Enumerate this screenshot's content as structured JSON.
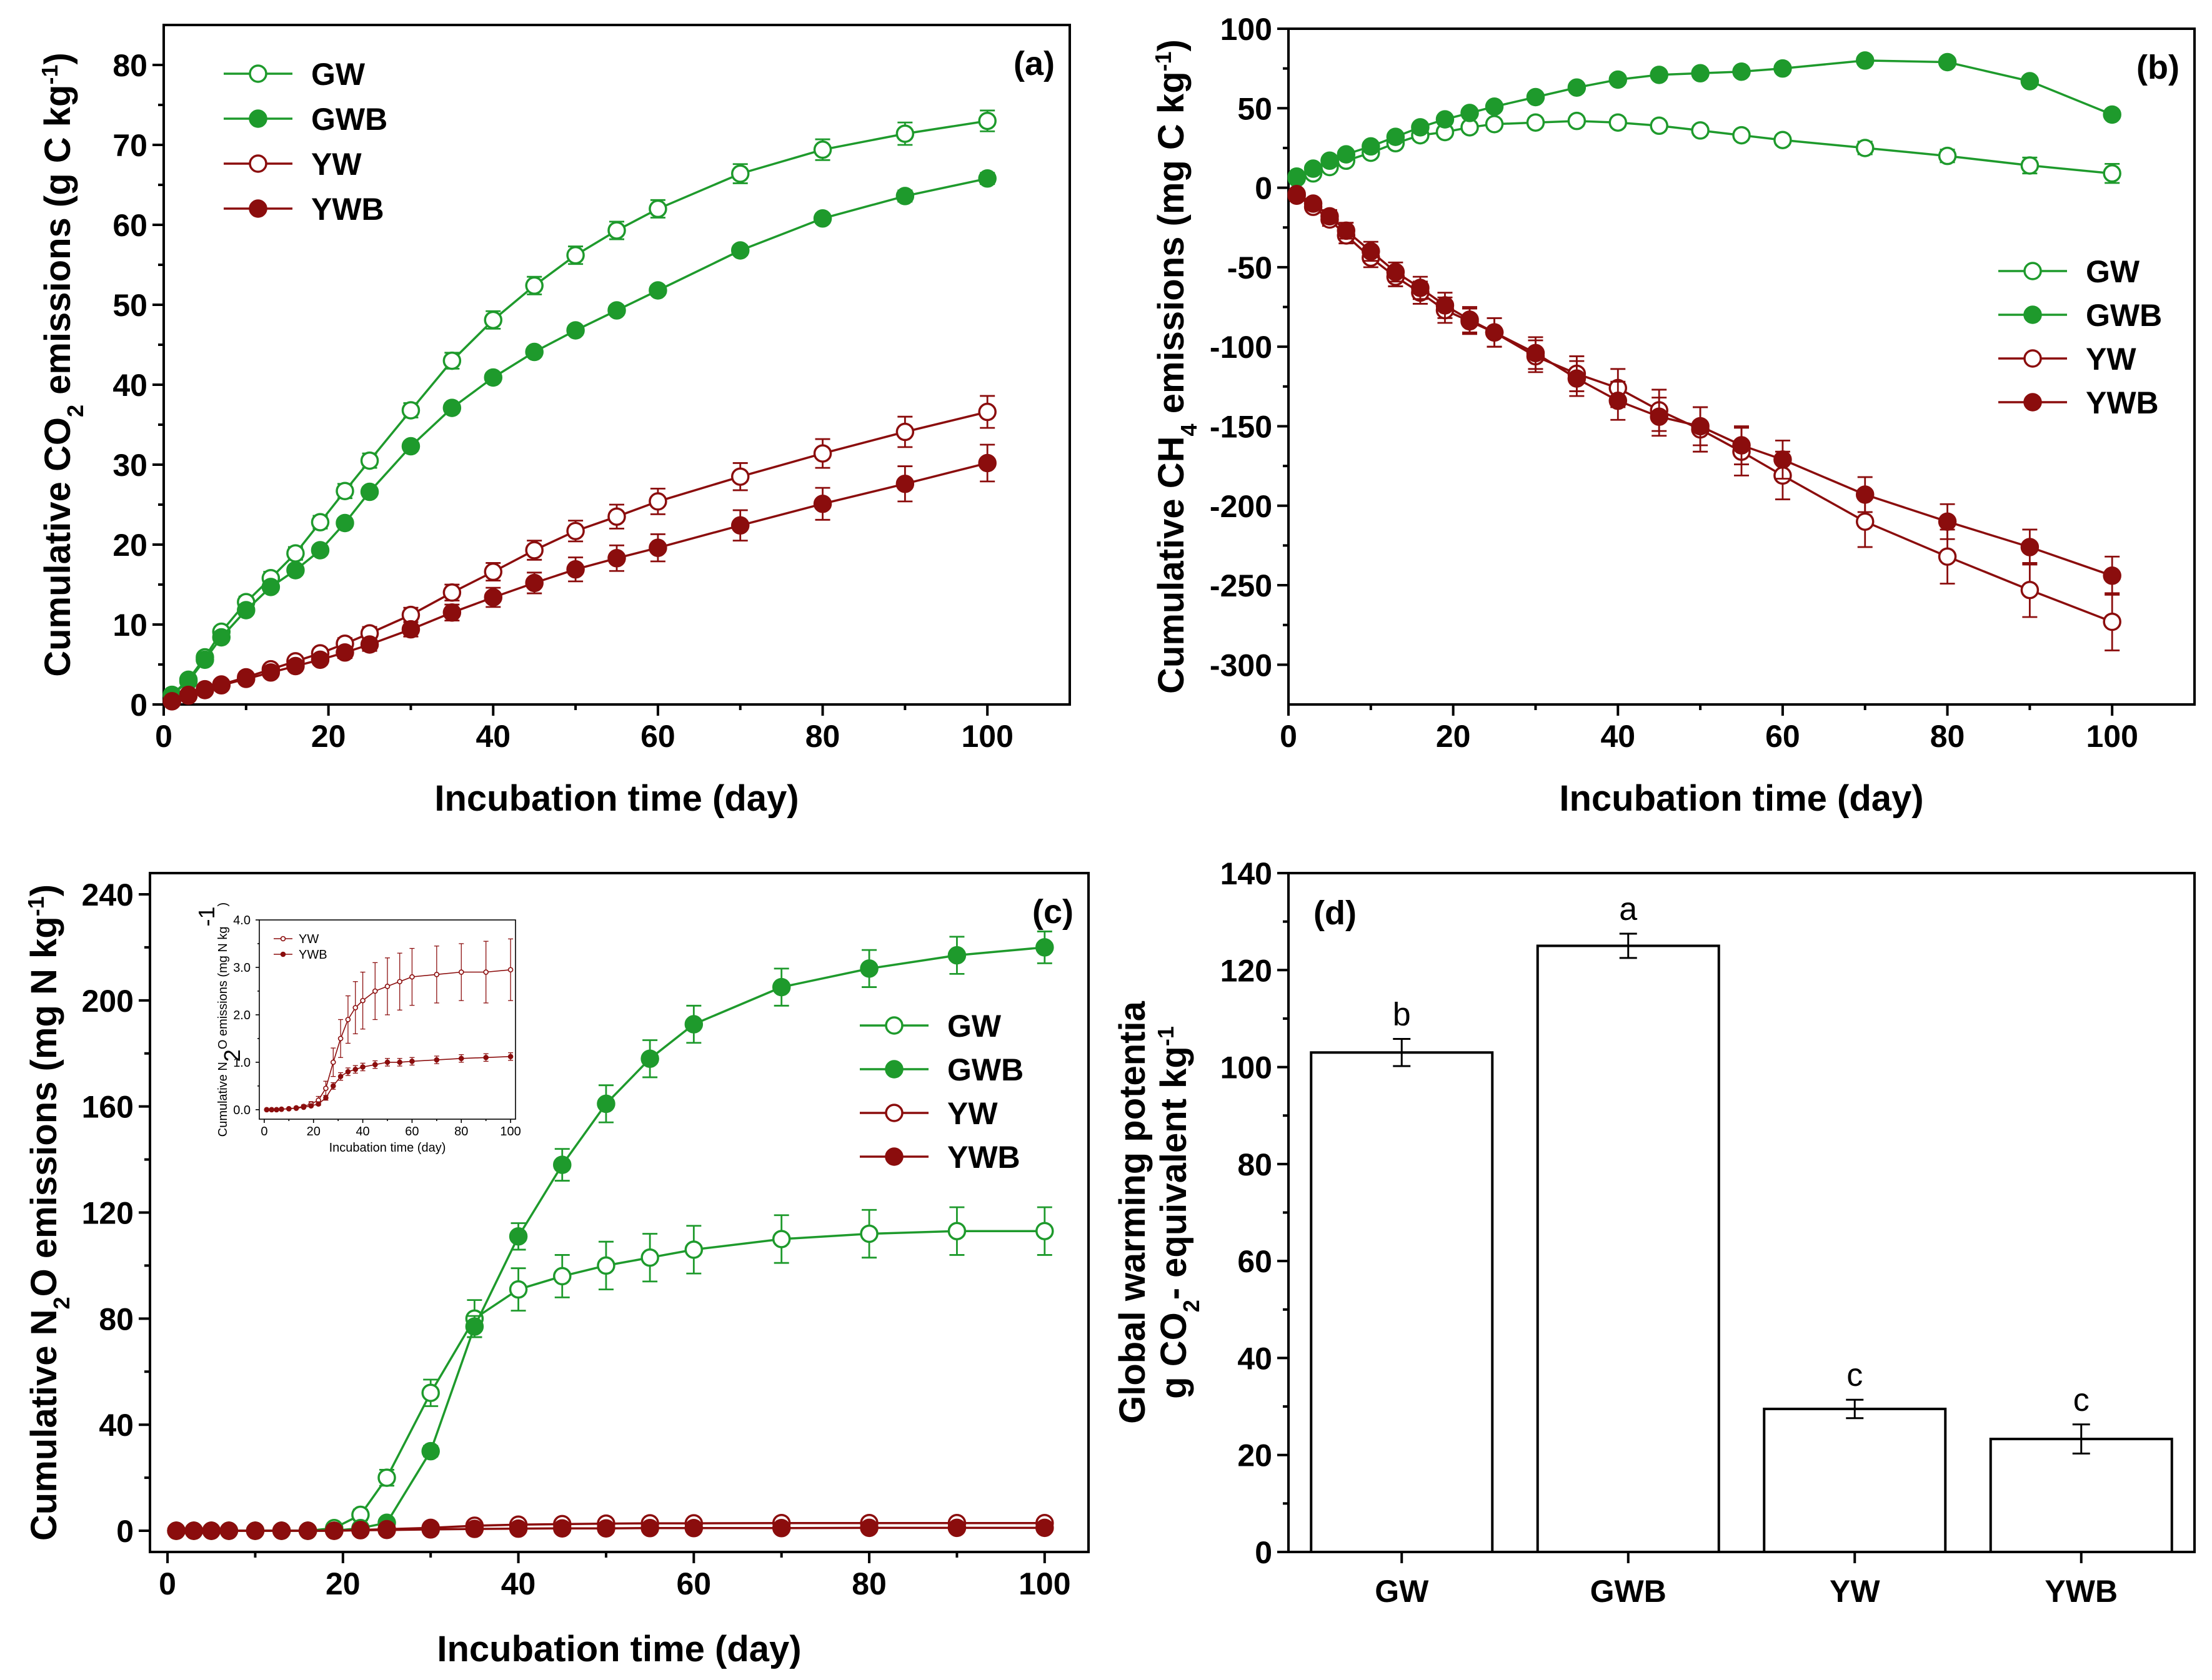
{
  "colors": {
    "green": "#1e9a2c",
    "red": "#8b0d0d",
    "axis": "#000000",
    "bar_fill": "#ffffff"
  },
  "chart_data": [
    {
      "id": "a",
      "type": "line",
      "panel_label": "(a)",
      "xlabel": "Incubation time (day)",
      "ylabel_pre": "Cumulative CO",
      "ylabel_sub": "2",
      "ylabel_mid": " emissions (g C kg",
      "ylabel_sup": "-1",
      "ylabel_post": ")",
      "xlim": [
        0,
        110
      ],
      "ylim": [
        0,
        85
      ],
      "xticks": [
        0,
        20,
        40,
        60,
        80,
        100
      ],
      "xtick_labels": [
        "0",
        "20",
        "40",
        "60",
        "80",
        "100"
      ],
      "yticks": [
        0,
        10,
        20,
        30,
        40,
        50,
        60,
        70,
        80
      ],
      "ytick_labels": [
        "0",
        "10",
        "20",
        "30",
        "40",
        "50",
        "60",
        "70",
        "80"
      ],
      "legend": [
        "GW",
        "GWB",
        "YW",
        "YWB"
      ],
      "x": [
        1,
        3,
        5,
        7,
        10,
        13,
        16,
        19,
        22,
        25,
        30,
        35,
        40,
        45,
        50,
        55,
        60,
        70,
        80,
        90,
        100
      ],
      "series": [
        {
          "name": "GW",
          "color": "green",
          "filled": false,
          "values": [
            1.2,
            3.1,
            5.9,
            9.1,
            12.8,
            15.8,
            18.9,
            22.8,
            26.7,
            30.5,
            36.8,
            43.0,
            48.1,
            52.4,
            56.2,
            59.3,
            62.0,
            66.4,
            69.4,
            71.4,
            73.0
          ],
          "errors": [
            0.3,
            0.4,
            0.5,
            0.6,
            0.7,
            0.8,
            0.8,
            0.8,
            0.9,
            0.9,
            0.9,
            1.0,
            1.1,
            1.1,
            1.1,
            1.1,
            1.1,
            1.2,
            1.3,
            1.4,
            1.3
          ]
        },
        {
          "name": "GWB",
          "color": "green",
          "filled": true,
          "values": [
            1.2,
            2.9,
            5.6,
            8.4,
            11.8,
            14.7,
            16.8,
            19.3,
            22.7,
            26.6,
            32.3,
            37.1,
            40.9,
            44.1,
            46.8,
            49.3,
            51.8,
            56.8,
            60.8,
            63.6,
            65.8
          ],
          "errors": [
            0.2,
            0.3,
            0.4,
            0.5,
            0.5,
            0.6,
            0.6,
            0.6,
            0.6,
            0.6,
            0.6,
            0.6,
            0.6,
            0.6,
            0.6,
            0.6,
            0.6,
            0.6,
            0.6,
            0.7,
            0.7
          ]
        },
        {
          "name": "YW",
          "color": "red",
          "filled": false,
          "values": [
            0.4,
            1.2,
            1.9,
            2.5,
            3.4,
            4.4,
            5.4,
            6.4,
            7.6,
            8.9,
            11.2,
            14.0,
            16.6,
            19.3,
            21.7,
            23.5,
            25.4,
            28.5,
            31.4,
            34.1,
            36.6
          ],
          "errors": [
            0.1,
            0.2,
            0.3,
            0.3,
            0.4,
            0.5,
            0.6,
            0.6,
            0.7,
            0.8,
            0.9,
            1.0,
            1.1,
            1.2,
            1.3,
            1.5,
            1.6,
            1.7,
            1.8,
            1.9,
            2.0
          ]
        },
        {
          "name": "YWB",
          "color": "red",
          "filled": true,
          "values": [
            0.4,
            1.1,
            1.8,
            2.4,
            3.2,
            4.0,
            4.8,
            5.6,
            6.5,
            7.5,
            9.4,
            11.5,
            13.4,
            15.2,
            16.9,
            18.3,
            19.6,
            22.4,
            25.1,
            27.6,
            30.2
          ],
          "errors": [
            0.1,
            0.2,
            0.3,
            0.3,
            0.4,
            0.5,
            0.6,
            0.6,
            0.7,
            0.8,
            0.9,
            1.0,
            1.2,
            1.3,
            1.5,
            1.6,
            1.7,
            1.9,
            2.0,
            2.2,
            2.3
          ]
        }
      ]
    },
    {
      "id": "b",
      "type": "line",
      "panel_label": "(b)",
      "xlabel": "Incubation time (day)",
      "ylabel_pre": "Cumulative CH",
      "ylabel_sub": "4",
      "ylabel_mid": " emissions (mg C kg",
      "ylabel_sup": "-1",
      "ylabel_post": ")",
      "xlim": [
        0,
        110
      ],
      "ylim": [
        -325,
        100
      ],
      "xticks": [
        0,
        20,
        40,
        60,
        80,
        100
      ],
      "xtick_labels": [
        "0",
        "20",
        "40",
        "60",
        "80",
        "100"
      ],
      "yticks": [
        -300,
        -250,
        -200,
        -150,
        -100,
        -50,
        0,
        50,
        100
      ],
      "ytick_labels": [
        "-300",
        "-250",
        "-200",
        "-150",
        "-100",
        "-50",
        "0",
        "50",
        "100"
      ],
      "legend": [
        "GW",
        "GWB",
        "YW",
        "YWB"
      ],
      "x": [
        1,
        3,
        5,
        7,
        10,
        13,
        16,
        19,
        22,
        25,
        30,
        35,
        40,
        45,
        50,
        55,
        60,
        70,
        80,
        90,
        100
      ],
      "series": [
        {
          "name": "GW",
          "color": "green",
          "filled": false,
          "values": [
            6,
            9,
            13,
            17,
            22,
            28,
            33,
            35,
            38,
            40,
            41,
            42,
            41,
            39,
            36,
            33,
            30,
            25,
            20,
            14,
            9
          ],
          "errors": [
            1,
            1,
            2,
            2,
            2,
            3,
            3,
            3,
            3,
            3,
            3,
            3,
            3,
            3,
            3,
            3,
            3,
            4,
            4,
            5,
            6
          ]
        },
        {
          "name": "GWB",
          "color": "green",
          "filled": true,
          "values": [
            7,
            12,
            17,
            21,
            26,
            32,
            38,
            43,
            47,
            51,
            57,
            63,
            68,
            71,
            72,
            73,
            75,
            80,
            79,
            67,
            46
          ],
          "errors": [
            1,
            1,
            1,
            1,
            2,
            2,
            2,
            2,
            2,
            2,
            2,
            2,
            2,
            2,
            2,
            2,
            2,
            2,
            2,
            2,
            2
          ]
        },
        {
          "name": "YW",
          "color": "red",
          "filled": false,
          "values": [
            -5,
            -12,
            -20,
            -30,
            -44,
            -56,
            -66,
            -77,
            -84,
            -91,
            -106,
            -117,
            -126,
            -140,
            -152,
            -166,
            -181,
            -210,
            -232,
            -253,
            -273
          ],
          "errors": [
            2,
            3,
            4,
            5,
            6,
            6,
            7,
            8,
            8,
            9,
            10,
            11,
            12,
            13,
            14,
            15,
            15,
            16,
            17,
            17,
            18
          ]
        },
        {
          "name": "YWB",
          "color": "red",
          "filled": true,
          "values": [
            -4,
            -10,
            -18,
            -27,
            -40,
            -53,
            -63,
            -74,
            -83,
            -91,
            -104,
            -120,
            -134,
            -144,
            -150,
            -162,
            -171,
            -193,
            -210,
            -226,
            -244
          ],
          "errors": [
            2,
            3,
            4,
            5,
            6,
            6,
            7,
            8,
            8,
            9,
            10,
            11,
            12,
            12,
            12,
            12,
            12,
            11,
            11,
            11,
            12
          ]
        }
      ]
    },
    {
      "id": "c",
      "type": "line",
      "panel_label": "(c)",
      "xlabel": "Incubation time (day)",
      "ylabel_pre": "Cumulative N",
      "ylabel_sub": "2",
      "ylabel_mid": "O emissions (mg N kg",
      "ylabel_sup": "-1",
      "ylabel_post": ")",
      "xlim": [
        -2,
        105
      ],
      "ylim": [
        -8,
        248
      ],
      "xticks": [
        0,
        20,
        40,
        60,
        80,
        100
      ],
      "xtick_labels": [
        "0",
        "20",
        "40",
        "60",
        "80",
        "100"
      ],
      "yticks": [
        0,
        40,
        80,
        120,
        160,
        200,
        240
      ],
      "ytick_labels": [
        "0",
        "40",
        "80",
        "120",
        "160",
        "200",
        "240"
      ],
      "legend": [
        "GW",
        "GWB",
        "YW",
        "YWB"
      ],
      "x": [
        1,
        3,
        5,
        7,
        10,
        13,
        16,
        19,
        22,
        25,
        30,
        35,
        40,
        45,
        50,
        55,
        60,
        70,
        80,
        90,
        100
      ],
      "series": [
        {
          "name": "GW",
          "color": "green",
          "filled": false,
          "values": [
            0,
            0,
            0,
            0,
            0,
            0,
            0,
            1,
            6,
            20,
            52,
            80,
            91,
            96,
            100,
            103,
            106,
            110,
            112,
            113,
            113
          ],
          "errors": [
            0,
            0,
            0,
            0,
            0,
            0,
            0,
            0.5,
            2,
            3,
            5,
            7,
            8,
            8,
            9,
            9,
            9,
            9,
            9,
            9,
            9
          ]
        },
        {
          "name": "GWB",
          "color": "green",
          "filled": true,
          "values": [
            0,
            0,
            0,
            0,
            0,
            0,
            0,
            0,
            1,
            3,
            30,
            77,
            111,
            138,
            161,
            178,
            191,
            205,
            212,
            217,
            220
          ],
          "errors": [
            0,
            0,
            0,
            0,
            0,
            0,
            0,
            0,
            0.5,
            1,
            2,
            4,
            5,
            6,
            7,
            7,
            7,
            7,
            7,
            7,
            6
          ]
        },
        {
          "name": "YW",
          "color": "red",
          "filled": false,
          "values": [
            0,
            0,
            0,
            0,
            0,
            0,
            0,
            0,
            0.3,
            0.6,
            1.1,
            1.9,
            2.3,
            2.5,
            2.7,
            2.8,
            2.8,
            2.9,
            2.9,
            2.9,
            2.9
          ],
          "errors": [
            0,
            0,
            0,
            0,
            0,
            0,
            0,
            0,
            0.1,
            0.2,
            0.4,
            0.6,
            0.6,
            0.6,
            0.6,
            0.6,
            0.6,
            0.6,
            0.6,
            0.6,
            0.6
          ]
        },
        {
          "name": "YWB",
          "color": "red",
          "filled": true,
          "values": [
            0,
            0,
            0,
            0,
            0,
            0,
            0,
            0,
            0.2,
            0.3,
            0.5,
            0.7,
            0.8,
            0.9,
            0.9,
            1.0,
            1.0,
            1.0,
            1.1,
            1.1,
            1.1
          ],
          "errors": [
            0,
            0,
            0,
            0,
            0,
            0,
            0,
            0,
            0.05,
            0.1,
            0.1,
            0.1,
            0.1,
            0.1,
            0.1,
            0.1,
            0.1,
            0.1,
            0.1,
            0.1,
            0.1
          ]
        }
      ]
    },
    {
      "id": "c_inset",
      "type": "line",
      "xlabel": "Incubation time (day)",
      "ylabel_pre": "Cumulative N",
      "ylabel_sub": "2",
      "ylabel_mid": "O emissions (mg N kg",
      "ylabel_sup": "-1",
      "ylabel_post": ")",
      "xlim": [
        -2,
        102
      ],
      "ylim": [
        -0.2,
        4.0
      ],
      "xticks": [
        0,
        20,
        40,
        60,
        80,
        100
      ],
      "xtick_labels": [
        "0",
        "20",
        "40",
        "60",
        "80",
        "100"
      ],
      "yticks": [
        0,
        1,
        2,
        3,
        4
      ],
      "ytick_labels": [
        "0.0",
        "1.0",
        "2.0",
        "3.0",
        "4.0"
      ],
      "legend": [
        "YW",
        "YWB"
      ],
      "x": [
        1,
        3,
        5,
        7,
        10,
        13,
        16,
        19,
        22,
        25,
        28,
        31,
        34,
        37,
        40,
        45,
        50,
        55,
        60,
        70,
        80,
        90,
        100
      ],
      "series": [
        {
          "name": "YW",
          "color": "red",
          "filled": false,
          "values": [
            0,
            0,
            0,
            0.01,
            0.02,
            0.04,
            0.07,
            0.12,
            0.2,
            0.45,
            1.0,
            1.5,
            1.9,
            2.15,
            2.3,
            2.5,
            2.6,
            2.7,
            2.8,
            2.85,
            2.9,
            2.9,
            2.95
          ],
          "errors": [
            0,
            0,
            0,
            0,
            0.01,
            0.02,
            0.03,
            0.05,
            0.08,
            0.15,
            0.3,
            0.4,
            0.5,
            0.55,
            0.6,
            0.6,
            0.6,
            0.6,
            0.6,
            0.6,
            0.6,
            0.65,
            0.65
          ]
        },
        {
          "name": "YWB",
          "color": "red",
          "filled": true,
          "values": [
            0,
            0,
            0,
            0.01,
            0.02,
            0.03,
            0.05,
            0.08,
            0.12,
            0.25,
            0.5,
            0.7,
            0.8,
            0.85,
            0.9,
            0.95,
            1.0,
            1.0,
            1.02,
            1.05,
            1.08,
            1.1,
            1.12
          ],
          "errors": [
            0,
            0,
            0,
            0,
            0,
            0.01,
            0.01,
            0.02,
            0.03,
            0.05,
            0.07,
            0.08,
            0.08,
            0.08,
            0.08,
            0.08,
            0.08,
            0.08,
            0.08,
            0.08,
            0.08,
            0.08,
            0.08
          ]
        }
      ]
    },
    {
      "id": "d",
      "type": "bar",
      "panel_label": "(d)",
      "ylabel_line1": "Global warming potentia",
      "ylabel_line2_pre": "g CO",
      "ylabel_line2_sub": "2",
      "ylabel_line2_mid": "- equivalent kg",
      "ylabel_line2_sup": "-1",
      "ylim": [
        0,
        140
      ],
      "yticks": [
        0,
        20,
        40,
        60,
        80,
        100,
        120,
        140
      ],
      "ytick_labels": [
        "0",
        "20",
        "40",
        "60",
        "80",
        "100",
        "120",
        "140"
      ],
      "categories": [
        "GW",
        "GWB",
        "YW",
        "YWB"
      ],
      "values": [
        103,
        125,
        29.5,
        23.3
      ],
      "errors": [
        2.8,
        2.5,
        1.9,
        3.0
      ],
      "letters": [
        "b",
        "a",
        "c",
        "c"
      ]
    }
  ]
}
